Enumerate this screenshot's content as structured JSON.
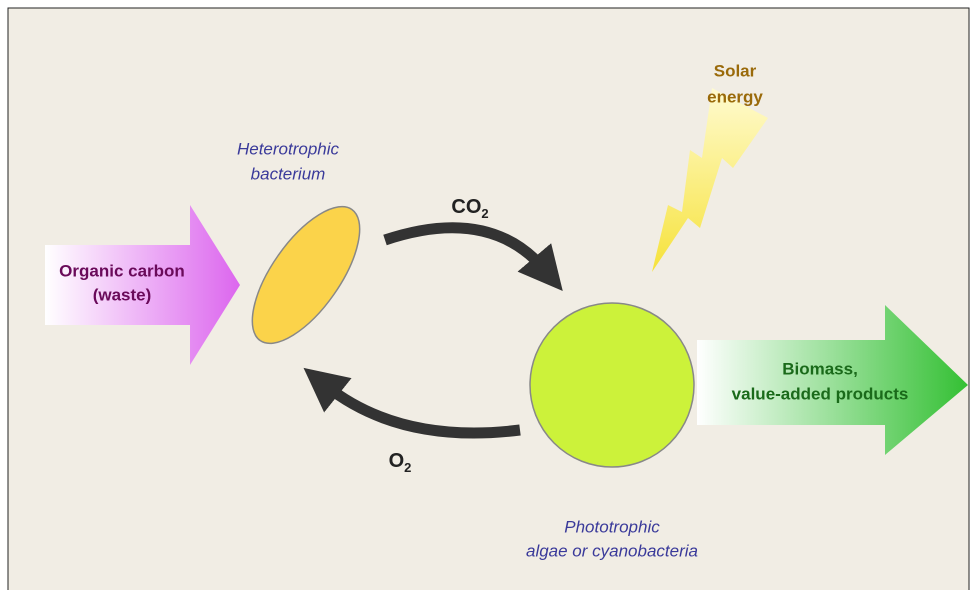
{
  "inputs": {
    "lines": [
      "Organic carbon",
      "(waste)"
    ]
  },
  "bacterium": {
    "lines": [
      "Heterotrophic",
      "bacterium"
    ]
  },
  "co2": {
    "text": "CO",
    "subscript": "2"
  },
  "o2": {
    "text": "O",
    "subscript": "2"
  },
  "solar": {
    "lines": [
      "Solar",
      "energy"
    ]
  },
  "phototroph": {
    "lines": [
      "Phototrophic",
      "algae or cyanobacteria"
    ]
  },
  "outputs": {
    "lines": [
      "Biomass,",
      "value-added products"
    ]
  }
}
